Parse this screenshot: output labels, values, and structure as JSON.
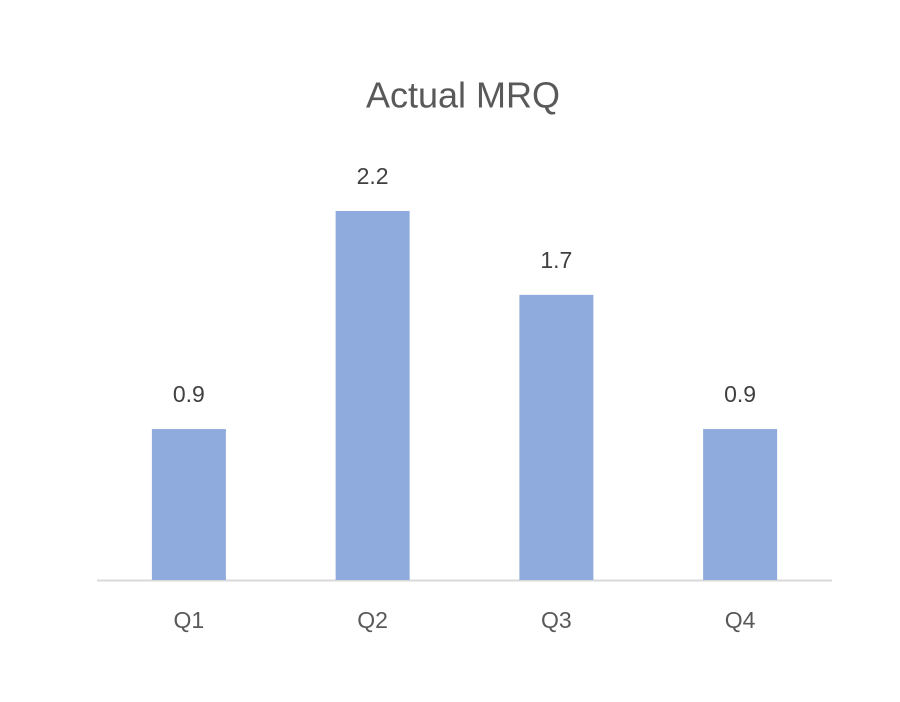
{
  "chart_data": {
    "type": "bar",
    "title": "Actual MRQ",
    "categories": [
      "Q1",
      "Q2",
      "Q3",
      "Q4"
    ],
    "values": [
      0.9,
      2.2,
      1.7,
      0.9
    ],
    "color": "#8faadc"
  }
}
